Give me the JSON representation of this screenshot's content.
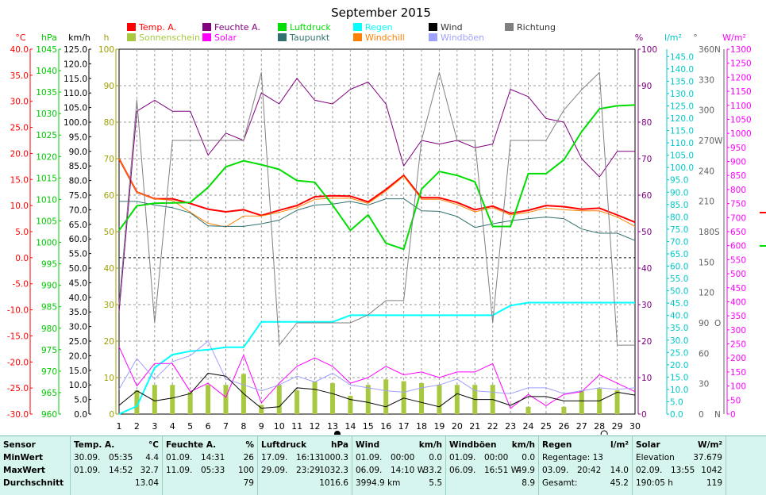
{
  "title": "September 2015",
  "chart_data": {
    "type": "line",
    "title": "September 2015",
    "x": [
      1,
      2,
      3,
      4,
      5,
      6,
      7,
      8,
      9,
      10,
      11,
      12,
      13,
      14,
      15,
      16,
      17,
      18,
      19,
      20,
      21,
      22,
      23,
      24,
      25,
      26,
      27,
      28,
      29,
      30
    ],
    "x_ticks": [
      "1",
      "2",
      "3",
      "4",
      "5",
      "6",
      "7",
      "8",
      "9",
      "10",
      "11",
      "12",
      "13",
      "14",
      "15",
      "16",
      "17",
      "18",
      "19",
      "20",
      "21",
      "22",
      "23",
      "24",
      "25",
      "26",
      "27",
      "28",
      "29",
      "30"
    ],
    "axes": {
      "temp": {
        "unit": "°C",
        "range": [
          -30,
          40
        ],
        "step": 5,
        "color": "#ff0000"
      },
      "pressure": {
        "unit": "hPa",
        "range": [
          960,
          1045
        ],
        "step": 5,
        "color": "#00c800"
      },
      "wind": {
        "unit": "km/h",
        "range": [
          0,
          125
        ],
        "step": 5,
        "color": "#000000"
      },
      "sun": {
        "unit": "h",
        "range": [
          0,
          100
        ],
        "step": 10,
        "color": "#a0a000"
      },
      "humidity": {
        "unit": "%",
        "range": [
          0,
          100
        ],
        "step": 10,
        "color": "#800080"
      },
      "rain": {
        "unit": "l/m²",
        "range": [
          0,
          148
        ],
        "step": 5,
        "color": "#00c8c8"
      },
      "direction": {
        "unit": "°",
        "range": [
          0,
          360
        ],
        "step": 30,
        "color": "#606060"
      },
      "solar": {
        "unit": "W/m²",
        "range": [
          0,
          1300
        ],
        "step": 50,
        "color": "#ff00ff"
      }
    },
    "direction_labels": {
      "0": "N",
      "90": "O",
      "180": "S",
      "270": "W",
      "360": "N"
    },
    "legend": [
      {
        "name": "Temp. A.",
        "color": "#ff0000"
      },
      {
        "name": "Feuchte A.",
        "color": "#800080"
      },
      {
        "name": "Luftdruck",
        "color": "#00dd00"
      },
      {
        "name": "Regen",
        "color": "#00ffff"
      },
      {
        "name": "Wind",
        "color": "#000000"
      },
      {
        "name": "Richtung",
        "color": "#808080"
      },
      {
        "name": "Sonnenschein",
        "color": "#a8c840"
      },
      {
        "name": "Solar",
        "color": "#ff00ff"
      },
      {
        "name": "Taupunkt",
        "color": "#307070"
      },
      {
        "name": "Windchill",
        "color": "#ff8000"
      },
      {
        "name": "Windböen",
        "color": "#a0a0ff"
      }
    ],
    "series": [
      {
        "key": "temp",
        "name": "Temp. A.",
        "axis": "temp",
        "color": "#ff0000",
        "width": 2,
        "values": [
          19.0,
          12.6,
          11.3,
          11.3,
          10.4,
          9.3,
          8.8,
          9.2,
          8.1,
          9.1,
          10.0,
          11.7,
          11.9,
          11.8,
          10.7,
          13.1,
          15.8,
          11.5,
          11.5,
          10.6,
          9.2,
          9.9,
          8.5,
          9.1,
          10.0,
          9.8,
          9.3,
          9.5,
          8.2,
          6.8
        ]
      },
      {
        "key": "windchill",
        "name": "Windchill",
        "axis": "temp",
        "color": "#ff8000",
        "width": 1,
        "values": [
          19.0,
          12.6,
          11.3,
          11.0,
          8.7,
          6.6,
          5.9,
          8.0,
          8.0,
          8.7,
          9.6,
          11.2,
          11.4,
          11.4,
          10.4,
          12.8,
          15.6,
          11.2,
          11.2,
          10.2,
          8.8,
          9.6,
          8.2,
          8.7,
          9.5,
          9.2,
          9.0,
          9.0,
          7.8,
          6.0
        ]
      },
      {
        "key": "dew",
        "name": "Taupunkt",
        "axis": "temp",
        "color": "#307070",
        "width": 1,
        "values": [
          10.8,
          10.8,
          10.1,
          9.6,
          8.6,
          6.1,
          6.0,
          6.0,
          6.5,
          7.2,
          9.1,
          10.1,
          10.3,
          10.8,
          10.1,
          11.3,
          11.3,
          9.0,
          8.9,
          7.9,
          5.8,
          6.5,
          7.1,
          7.5,
          7.8,
          7.5,
          5.5,
          4.7,
          4.7,
          3.3
        ]
      },
      {
        "key": "humidity",
        "name": "Feuchte A.",
        "axis": "humidity",
        "color": "#800080",
        "width": 1,
        "values": [
          28,
          83,
          86,
          83,
          83,
          71,
          77,
          75,
          88,
          85,
          92,
          86,
          85,
          89,
          91,
          85,
          68,
          75,
          74,
          75,
          73,
          74,
          89,
          87,
          81,
          80,
          70,
          65,
          72,
          72
        ]
      },
      {
        "key": "pressure",
        "name": "Luftdruck",
        "axis": "pressure",
        "color": "#00dd00",
        "width": 2,
        "values": [
          1002.8,
          1008.5,
          1009.1,
          1009.2,
          1009.3,
          1012.8,
          1017.6,
          1019.0,
          1018.1,
          1017.0,
          1014.4,
          1014.0,
          1008.7,
          1002.8,
          1006.4,
          999.8,
          998.4,
          1012.4,
          1016.5,
          1015.6,
          1014.1,
          1003.7,
          1003.7,
          1016.0,
          1016.0,
          1019.2,
          1025.8,
          1031.1,
          1031.8,
          1032.0
        ]
      },
      {
        "key": "rain",
        "name": "Regen",
        "axis": "rain",
        "color": "#00ffff",
        "width": 2,
        "values": [
          0.0,
          3.2,
          18.8,
          24.1,
          25.5,
          26.1,
          27.1,
          27.1,
          37.4,
          37.4,
          37.4,
          37.4,
          37.4,
          40.1,
          40.1,
          40.1,
          40.1,
          40.1,
          40.1,
          40.1,
          40.1,
          40.1,
          44.0,
          45.2,
          45.2,
          45.2,
          45.2,
          45.2,
          45.2,
          45.2
        ]
      },
      {
        "key": "direction",
        "name": "Richtung",
        "axis": "direction",
        "color": "#808080",
        "width": 1,
        "values": [
          108,
          310,
          90,
          270,
          270,
          270,
          270,
          270,
          337,
          68,
          90,
          90,
          90,
          90,
          98,
          112,
          112,
          270,
          337,
          270,
          270,
          90,
          270,
          270,
          270,
          300,
          320,
          337,
          68,
          68
        ]
      },
      {
        "key": "solar",
        "name": "Solar",
        "axis": "solar",
        "color": "#ff00ff",
        "width": 1,
        "values": [
          240,
          100,
          180,
          180,
          80,
          110,
          60,
          210,
          40,
          110,
          170,
          200,
          170,
          110,
          130,
          170,
          140,
          150,
          130,
          150,
          150,
          180,
          20,
          70,
          30,
          70,
          80,
          140,
          110,
          80
        ]
      },
      {
        "key": "gusts",
        "name": "Windböen",
        "axis": "wind",
        "color": "#a0a0ff",
        "width": 1,
        "values": [
          8.5,
          19.0,
          12.0,
          18.0,
          20.0,
          25.0,
          12.0,
          10.0,
          8.0,
          10.0,
          13.0,
          11.0,
          14.0,
          10.0,
          9.0,
          8.0,
          7.5,
          9.0,
          10.0,
          12.0,
          8.0,
          7.5,
          7.0,
          9.0,
          9.0,
          7.0,
          8.0,
          9.0,
          8.5,
          9.0
        ]
      },
      {
        "key": "wind",
        "name": "Wind",
        "axis": "wind",
        "color": "#000000",
        "width": 1,
        "values": [
          3.0,
          8.0,
          4.5,
          5.5,
          7.0,
          14.0,
          13.0,
          7.0,
          2.0,
          2.5,
          9.0,
          8.5,
          7.0,
          5.0,
          4.0,
          2.5,
          5.5,
          4.0,
          2.5,
          7.0,
          5.0,
          5.0,
          3.0,
          6.0,
          6.0,
          4.5,
          4.5,
          4.5,
          7.5,
          6.5
        ]
      }
    ],
    "bars": {
      "key": "sun",
      "name": "Sonnenschein",
      "axis": "sun",
      "color": "#a8c840",
      "values": [
        0,
        6.5,
        8,
        8,
        6,
        8,
        8,
        11,
        2.5,
        8,
        6.5,
        9,
        8.5,
        5,
        8,
        9.5,
        9,
        8.5,
        8,
        8,
        8,
        8,
        0,
        2,
        0,
        2,
        6.5,
        7,
        6.5,
        0
      ]
    },
    "markers": [
      {
        "day": 13,
        "symbol": "new-moon"
      },
      {
        "day": 28,
        "symbol": "full-moon"
      }
    ]
  },
  "table": {
    "row_labels": [
      "Sensor",
      "MinWert",
      "MaxWert",
      "Durchschnitt"
    ],
    "columns": [
      {
        "name": "Temp. A.",
        "unit": "°C",
        "min": [
          "30.09.",
          "05:35",
          "4.4"
        ],
        "max": [
          "01.09.",
          "14:52",
          "32.7"
        ],
        "avg": [
          "",
          "",
          "13.04"
        ]
      },
      {
        "name": "Feuchte A.",
        "unit": "%",
        "min": [
          "01.09.",
          "14:31",
          "26"
        ],
        "max": [
          "11.09.",
          "05:33",
          "100"
        ],
        "avg": [
          "",
          "",
          "79"
        ]
      },
      {
        "name": "Luftdruck",
        "unit": "hPa",
        "min": [
          "17.09.",
          "16:13",
          "1000.3"
        ],
        "max": [
          "29.09.",
          "23:29",
          "1032.3"
        ],
        "avg": [
          "",
          "",
          "1016.6"
        ]
      },
      {
        "name": "Wind",
        "unit": "km/h",
        "min": [
          "01.09.",
          "00:00",
          "0.0"
        ],
        "max": [
          "06.09.",
          "14:10 W",
          "33.2"
        ],
        "avg": [
          "3994.9 km",
          "",
          "5.5"
        ]
      },
      {
        "name": "Windböen",
        "unit": "km/h",
        "min": [
          "01.09.",
          "00:00",
          "0.0"
        ],
        "max": [
          "06.09.",
          "16:51 W",
          "49.9"
        ],
        "avg": [
          "",
          "",
          "8.9"
        ]
      },
      {
        "name": "Regen",
        "unit": "l/m²",
        "min": [
          "Regentage: 13",
          "",
          ""
        ],
        "max": [
          "03.09.",
          "20:42",
          "14.0"
        ],
        "avg": [
          "Gesamt:",
          "",
          "45.2"
        ]
      },
      {
        "name": "Solar",
        "unit": "W/m²",
        "min": [
          "Elevation",
          "",
          "37.679"
        ],
        "max": [
          "02.09.",
          "13:55",
          "1042"
        ],
        "avg": [
          "190:05 h",
          "",
          "119"
        ]
      }
    ]
  }
}
